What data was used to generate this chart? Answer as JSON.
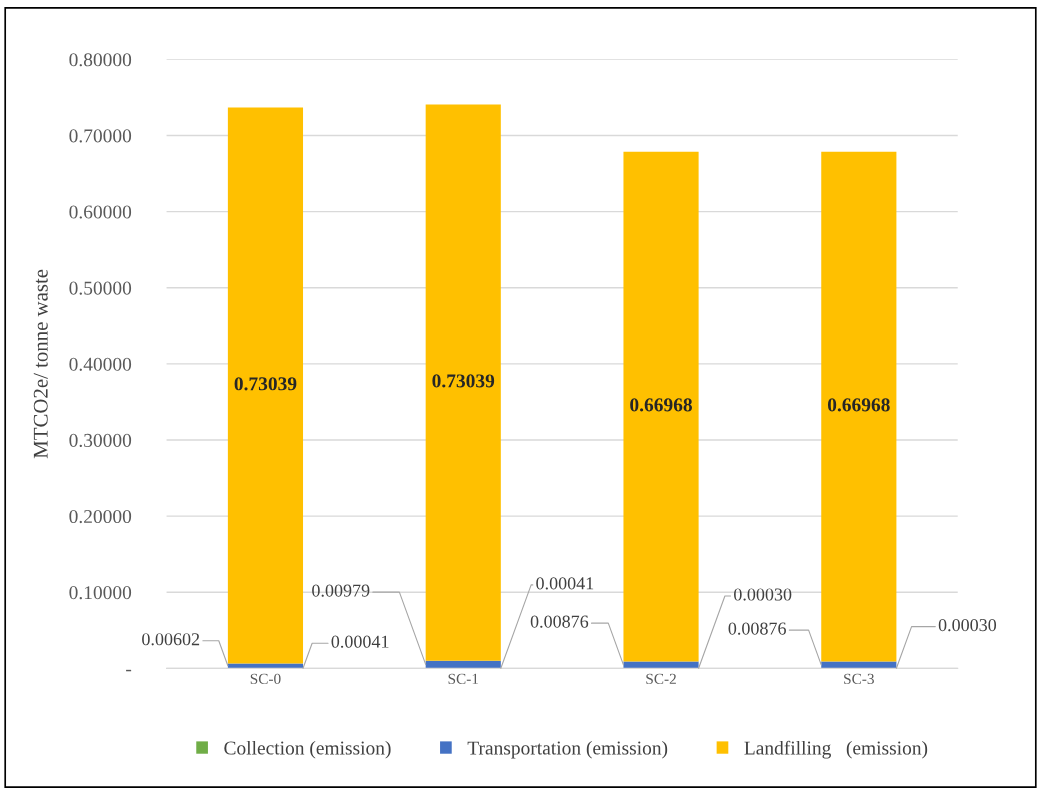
{
  "chart_data": {
    "type": "bar",
    "stacked": true,
    "ylabel": "MTCO2e/ tonne waste",
    "categories": [
      "SC-0",
      "SC-1",
      "SC-2",
      "SC-3"
    ],
    "series": [
      {
        "name": "Collection (emission)",
        "color": "#70ad47",
        "values": [
          0.00041,
          0.00041,
          0.0003,
          0.0003
        ],
        "value_labels": [
          "0.00041",
          "0.00041",
          "0.00030",
          "0.00030"
        ]
      },
      {
        "name": "Transportation (emission)",
        "color": "#4472c4",
        "values": [
          0.00602,
          0.00979,
          0.00876,
          0.00876
        ],
        "value_labels": [
          "0.00602",
          "0.00979",
          "0.00876",
          "0.00876"
        ]
      },
      {
        "name": "Landfilling   (emission)",
        "color": "#ffc000",
        "values": [
          0.73039,
          0.73039,
          0.66968,
          0.66968
        ],
        "value_labels": [
          "0.73039",
          "0.73039",
          "0.66968",
          "0.66968"
        ]
      }
    ],
    "ylim": [
      0,
      0.8
    ],
    "yticks": [
      {
        "value": 0,
        "label": "-"
      },
      {
        "value": 0.1,
        "label": "0.10000"
      },
      {
        "value": 0.2,
        "label": "0.20000"
      },
      {
        "value": 0.3,
        "label": "0.30000"
      },
      {
        "value": 0.4,
        "label": "0.40000"
      },
      {
        "value": 0.5,
        "label": "0.50000"
      },
      {
        "value": 0.6,
        "label": "0.60000"
      },
      {
        "value": 0.7,
        "label": "0.70000"
      },
      {
        "value": 0.8,
        "label": "0.80000"
      }
    ],
    "grid": "y",
    "legend": "bottom"
  }
}
